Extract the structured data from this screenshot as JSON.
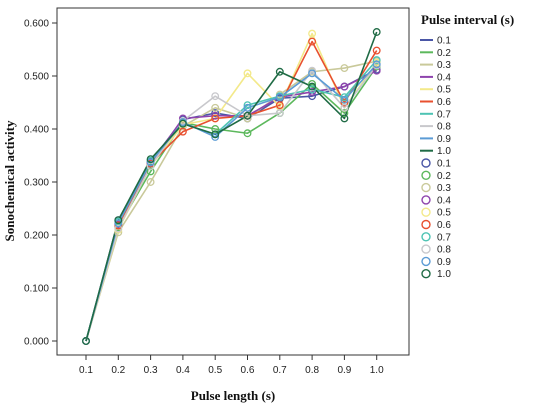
{
  "chart_data": {
    "type": "line",
    "xlabel": "Pulse length (s)",
    "ylabel": "Sonochemical activity",
    "x": [
      0.1,
      0.2,
      0.3,
      0.4,
      0.5,
      0.6,
      0.7,
      0.8,
      0.9,
      1.0
    ],
    "x_tick_labels": [
      "0.1",
      "0.2",
      "0.3",
      "0.4",
      "0.5",
      "0.6",
      "0.7",
      "0.8",
      "0.9",
      "1.0"
    ],
    "ylim": [
      0.0,
      0.62
    ],
    "y_ticks": [
      0.0,
      0.1,
      0.2,
      0.3,
      0.4,
      0.5,
      0.6
    ],
    "y_tick_labels": [
      "0.000",
      "0.100",
      "0.200",
      "0.300",
      "0.400",
      "0.500",
      "0.600"
    ],
    "legend_title": "Pulse interval (s)",
    "legend_placement": "right",
    "grid": false,
    "series": [
      {
        "name": "0.1",
        "color": "#4a56a6",
        "values": [
          0.0,
          0.228,
          0.338,
          0.418,
          0.43,
          0.42,
          0.458,
          0.462,
          0.48,
          0.512
        ]
      },
      {
        "name": "0.2",
        "color": "#5cb85c",
        "values": [
          0.0,
          0.215,
          0.32,
          0.412,
          0.4,
          0.392,
          0.43,
          0.485,
          0.43,
          0.518
        ]
      },
      {
        "name": "0.3",
        "color": "#c9c99a",
        "values": [
          0.0,
          0.205,
          0.3,
          0.405,
          0.44,
          0.42,
          0.465,
          0.508,
          0.515,
          0.528
        ]
      },
      {
        "name": "0.4",
        "color": "#8e44ad",
        "values": [
          0.0,
          0.22,
          0.335,
          0.42,
          0.425,
          0.425,
          0.46,
          0.47,
          0.48,
          0.51
        ]
      },
      {
        "name": "0.5",
        "color": "#f3e98a",
        "values": [
          0.0,
          0.21,
          0.33,
          0.408,
          0.42,
          0.505,
          0.442,
          0.58,
          0.44,
          0.525
        ]
      },
      {
        "name": "0.6",
        "color": "#e8502f",
        "values": [
          0.0,
          0.218,
          0.335,
          0.395,
          0.42,
          0.425,
          0.445,
          0.565,
          0.45,
          0.548
        ]
      },
      {
        "name": "0.7",
        "color": "#4dc3b3",
        "values": [
          0.0,
          0.225,
          0.34,
          0.41,
          0.39,
          0.445,
          0.462,
          0.475,
          0.46,
          0.53
        ]
      },
      {
        "name": "0.8",
        "color": "#c8c8cc",
        "values": [
          0.0,
          0.212,
          0.33,
          0.415,
          0.462,
          0.425,
          0.43,
          0.51,
          0.44,
          0.52
        ]
      },
      {
        "name": "0.9",
        "color": "#5b9bd5",
        "values": [
          0.0,
          0.222,
          0.337,
          0.413,
          0.385,
          0.44,
          0.46,
          0.505,
          0.455,
          0.522
        ]
      },
      {
        "name": "1.0",
        "color": "#1f6b45",
        "values": [
          0.0,
          0.228,
          0.343,
          0.41,
          0.39,
          0.425,
          0.508,
          0.48,
          0.42,
          0.583
        ]
      }
    ]
  }
}
